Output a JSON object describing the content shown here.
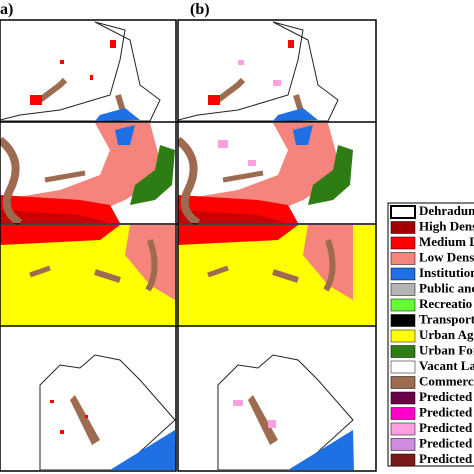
{
  "panels": {
    "a": "a)",
    "b": "(b)"
  },
  "legend": {
    "items": [
      {
        "label": "Dehradun",
        "color": "#ffffff"
      },
      {
        "label": "High Dens",
        "color": "#a50000"
      },
      {
        "label": "Medium D",
        "color": "#ff0000"
      },
      {
        "label": "Low Dens",
        "color": "#f4847c"
      },
      {
        "label": "Institution",
        "color": "#1f6fe5"
      },
      {
        "label": "Public and",
        "color": "#b4b4b4"
      },
      {
        "label": "Recreatio",
        "color": "#66ff33"
      },
      {
        "label": "Transport",
        "color": "#000000"
      },
      {
        "label": "Urban Ag",
        "color": "#ffff00"
      },
      {
        "label": "Urban For",
        "color": "#2e7d14"
      },
      {
        "label": "Vacant La",
        "color": "#ffffff"
      },
      {
        "label": "Commerc",
        "color": "#9c6b50"
      },
      {
        "label": "Predicted",
        "color": "#6a0048"
      },
      {
        "label": "Predicted",
        "color": "#ff00cc"
      },
      {
        "label": "Predicted",
        "color": "#ff9fe0"
      },
      {
        "label": "Predicted",
        "color": "#d08ce0"
      },
      {
        "label": "Predicted",
        "color": "#7a1a1a"
      }
    ]
  }
}
